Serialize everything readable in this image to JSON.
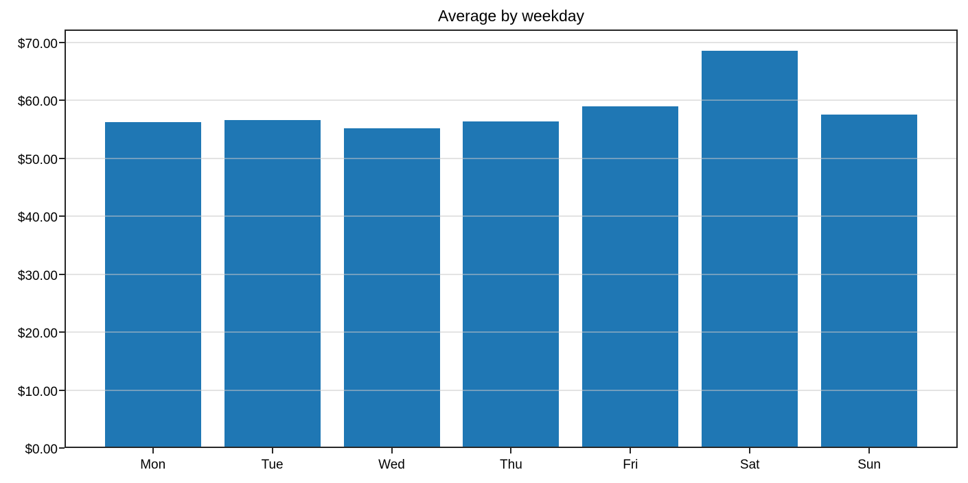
{
  "chart_data": {
    "type": "bar",
    "title": "Average by weekday",
    "categories": [
      "Mon",
      "Tue",
      "Wed",
      "Thu",
      "Fri",
      "Sat",
      "Sun"
    ],
    "values": [
      56.2,
      56.6,
      55.2,
      56.3,
      59.0,
      68.5,
      57.5
    ],
    "xlabel": "",
    "ylabel": "",
    "ylim": [
      0,
      72.2
    ],
    "yticks": [
      0,
      10,
      20,
      30,
      40,
      50,
      60,
      70
    ],
    "ytick_labels": [
      "$0.00",
      "$10.00",
      "$20.00",
      "$30.00",
      "$40.00",
      "$50.00",
      "$60.00",
      "$70.00"
    ],
    "bar_color": "#1f77b4",
    "grid": true,
    "grid_color": "rgba(200,200,200,0.5)",
    "frame_color": "#262626",
    "background": "#ffffff",
    "legend_position": "none"
  }
}
